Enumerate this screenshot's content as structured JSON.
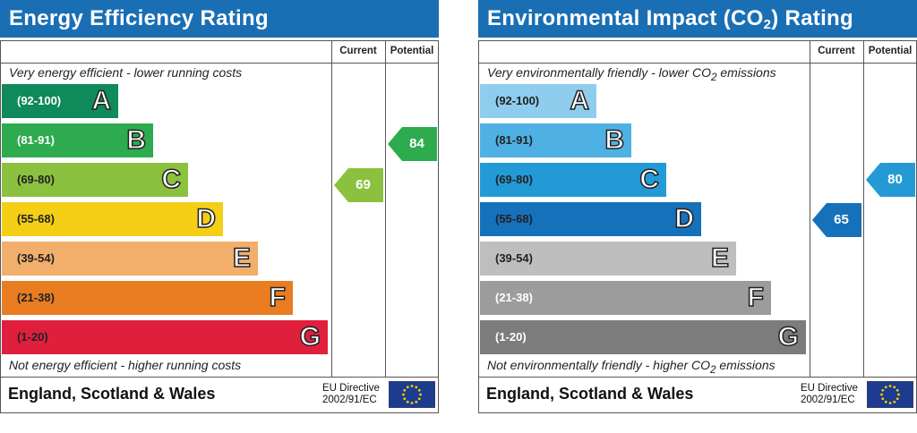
{
  "chart_data": [
    {
      "type": "bar",
      "title": "Energy Efficiency Rating",
      "columns": [
        "Current",
        "Potential"
      ],
      "top_note": "Very energy efficient - lower running costs",
      "bottom_note": "Not energy efficient - higher running costs",
      "bands": [
        {
          "range": "(92-100)",
          "letter": "A",
          "color": "#0f8a5a",
          "text_color": "#ffffff"
        },
        {
          "range": "(81-91)",
          "letter": "B",
          "color": "#2dab4e",
          "text_color": "#ffffff"
        },
        {
          "range": "(69-80)",
          "letter": "C",
          "color": "#8cc03f",
          "text_color": "#222222"
        },
        {
          "range": "(55-68)",
          "letter": "D",
          "color": "#f4cf15",
          "text_color": "#222222"
        },
        {
          "range": "(39-54)",
          "letter": "E",
          "color": "#f2ae6b",
          "text_color": "#222222"
        },
        {
          "range": "(21-38)",
          "letter": "F",
          "color": "#ea7c22",
          "text_color": "#222222"
        },
        {
          "range": "(1-20)",
          "letter": "G",
          "color": "#e01f3d",
          "text_color": "#222222"
        }
      ],
      "current": {
        "value": 69,
        "band": "C",
        "color": "#8cc03f"
      },
      "potential": {
        "value": 84,
        "band": "B",
        "color": "#2dab4e"
      },
      "region": "England, Scotland & Wales",
      "directive_line1": "EU Directive",
      "directive_line2": "2002/91/EC"
    },
    {
      "type": "bar",
      "title": "Environmental Impact (CO",
      "title_sub": "2",
      "title_end": ") Rating",
      "columns": [
        "Current",
        "Potential"
      ],
      "top_note": "Very environmentally friendly - lower CO",
      "top_note_sub": "2",
      "top_note_end": " emissions",
      "bottom_note": "Not environmentally friendly - higher CO",
      "bottom_note_sub": "2",
      "bottom_note_end": " emissions",
      "bands": [
        {
          "range": "(92-100)",
          "letter": "A",
          "color": "#8fcdee",
          "text_color": "#222222"
        },
        {
          "range": "(81-91)",
          "letter": "B",
          "color": "#4fb1e3",
          "text_color": "#222222"
        },
        {
          "range": "(69-80)",
          "letter": "C",
          "color": "#239ad6",
          "text_color": "#222222"
        },
        {
          "range": "(55-68)",
          "letter": "D",
          "color": "#1671bb",
          "text_color": "#222222"
        },
        {
          "range": "(39-54)",
          "letter": "E",
          "color": "#bebebe",
          "text_color": "#222222"
        },
        {
          "range": "(21-38)",
          "letter": "F",
          "color": "#9c9c9c",
          "text_color": "#ffffff"
        },
        {
          "range": "(1-20)",
          "letter": "G",
          "color": "#7c7c7c",
          "text_color": "#ffffff"
        }
      ],
      "current": {
        "value": 65,
        "band": "D",
        "color": "#1671bb"
      },
      "potential": {
        "value": 80,
        "band": "C",
        "color": "#239ad6"
      },
      "region": "England, Scotland & Wales",
      "directive_line1": "EU Directive",
      "directive_line2": "2002/91/EC"
    }
  ],
  "colors": {
    "title_bar": "#1a6fb4",
    "flag": "#1d3b8f",
    "flag_stars": "#f6d200"
  }
}
